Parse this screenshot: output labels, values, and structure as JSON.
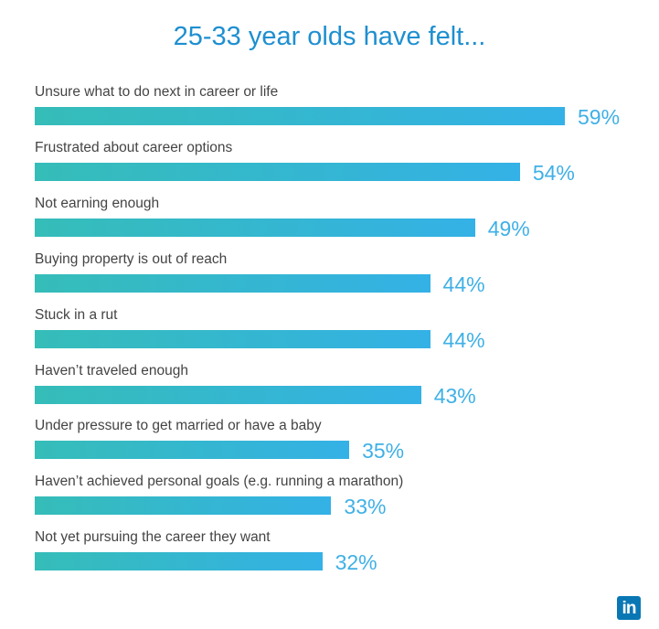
{
  "chart_data": {
    "type": "bar",
    "orientation": "horizontal",
    "title": "25-33 year olds have felt...",
    "categories": [
      "Unsure what to do next in career or life",
      "Frustrated about career options",
      "Not earning enough",
      "Buying property is out of reach",
      "Stuck in a rut",
      "Haven’t traveled enough",
      "Under pressure to get married or have a baby",
      "Haven’t achieved personal goals (e.g. running a marathon)",
      "Not yet pursuing the career they want"
    ],
    "values": [
      59,
      54,
      49,
      44,
      44,
      43,
      35,
      33,
      32
    ],
    "value_labels": [
      "59%",
      "54%",
      "49%",
      "44%",
      "44%",
      "43%",
      "35%",
      "33%",
      "32%"
    ],
    "unit": "%",
    "xlim": [
      0,
      59
    ],
    "grid": false,
    "colors": {
      "bar_start": "#35bdb8",
      "bar_end": "#34b1e6",
      "value_text": "#3fb0e6",
      "title": "#1e8fd0"
    }
  },
  "logo": {
    "text": "in",
    "color": "#0a77b5"
  }
}
